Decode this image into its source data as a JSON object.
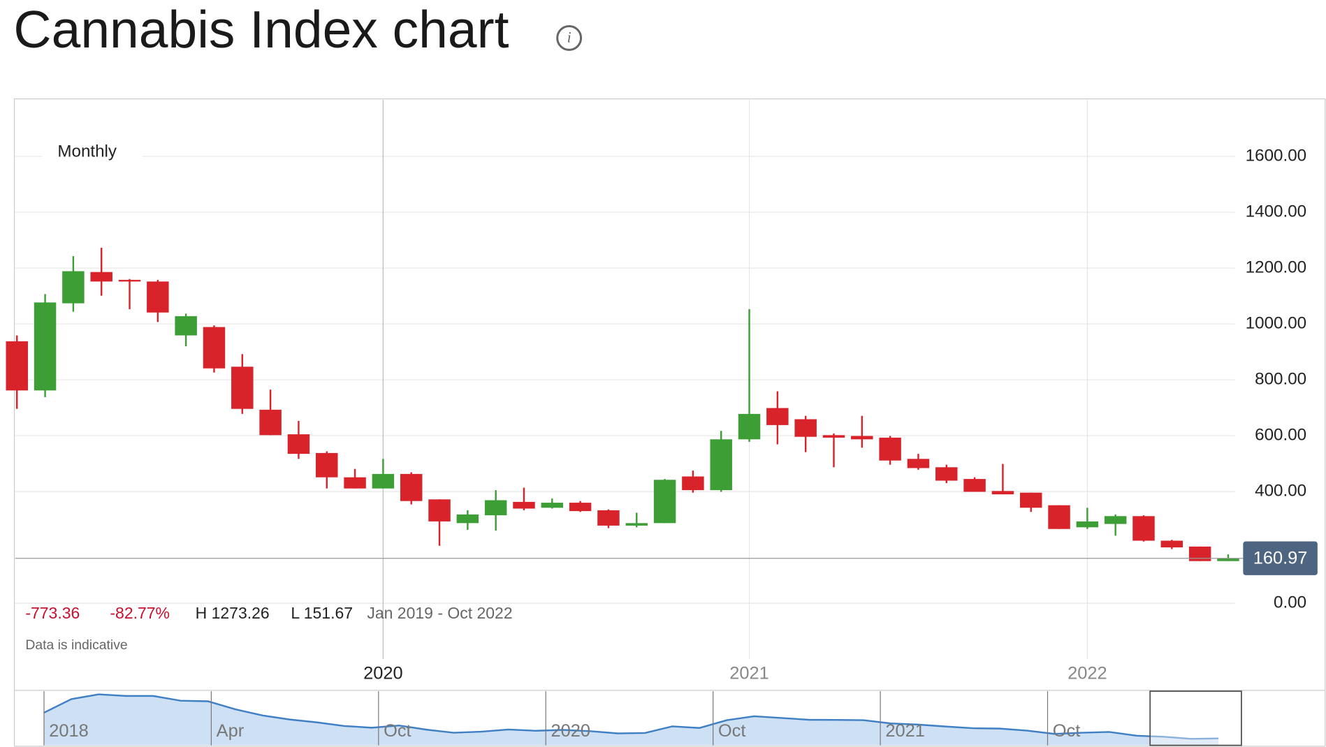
{
  "chart_data": {
    "type": "candlestick",
    "title": "Cannabis Index chart",
    "interval": "Monthly",
    "categories": [
      null,
      null,
      null,
      null,
      null,
      null,
      null,
      null,
      null,
      null,
      null,
      null,
      null,
      "2020",
      null,
      null,
      null,
      null,
      null,
      null,
      null,
      null,
      null,
      null,
      null,
      null,
      "2021",
      null,
      null,
      null,
      null,
      null,
      null,
      null,
      null,
      null,
      null,
      null,
      "2022",
      null,
      null,
      null,
      null,
      null
    ],
    "open": [
      938,
      762,
      1074,
      1186,
      1158,
      1152,
      959,
      989,
      847,
      693,
      605,
      538,
      451,
      411,
      463,
      372,
      287,
      315,
      363,
      342,
      360,
      333,
      278,
      287,
      454,
      405,
      587,
      699,
      659,
      602,
      599,
      593,
      517,
      487,
      445,
      402,
      396,
      351,
      272,
      284,
      312,
      224,
      203,
      151
    ],
    "high": [
      959,
      1107,
      1243,
      1273,
      1161,
      1158,
      1037,
      995,
      892,
      765,
      653,
      544,
      481,
      517,
      469,
      372,
      333,
      405,
      414,
      375,
      366,
      336,
      324,
      445,
      475,
      617,
      1053,
      759,
      671,
      608,
      671,
      599,
      535,
      496,
      451,
      499,
      396,
      351,
      342,
      318,
      315,
      227,
      203,
      175
    ],
    "low": [
      696,
      738,
      1044,
      1101,
      1053,
      1007,
      920,
      826,
      678,
      602,
      517,
      411,
      411,
      411,
      354,
      206,
      263,
      260,
      333,
      339,
      327,
      269,
      272,
      287,
      396,
      399,
      578,
      569,
      541,
      487,
      557,
      496,
      478,
      430,
      399,
      390,
      327,
      266,
      266,
      242,
      221,
      194,
      151,
      151
    ],
    "close": [
      762,
      1077,
      1189,
      1152,
      1152,
      1041,
      1028,
      841,
      696,
      602,
      535,
      451,
      411,
      463,
      366,
      293,
      318,
      369,
      339,
      360,
      330,
      278,
      287,
      442,
      405,
      587,
      678,
      638,
      596,
      593,
      587,
      511,
      484,
      439,
      399,
      390,
      342,
      266,
      293,
      312,
      224,
      200,
      151,
      161
    ],
    "up_color": "#3d9e35",
    "down_color": "#d8232a",
    "ylim": [
      -200,
      1803
    ],
    "yticks": [
      {
        "value": 0,
        "label": "0.00"
      },
      {
        "value": 400,
        "label": "400.00"
      },
      {
        "value": 600,
        "label": "600.00"
      },
      {
        "value": 800,
        "label": "800.00"
      },
      {
        "value": 1000,
        "label": "1000.00"
      },
      {
        "value": 1200,
        "label": "1200.00"
      },
      {
        "value": 1400,
        "label": "1400.00"
      },
      {
        "value": 1600,
        "label": "1600.00"
      }
    ],
    "grid": true,
    "last_price": 160.97,
    "stats": {
      "change": "-773.36",
      "change_pct": "-82.77%",
      "high": "H 1273.26",
      "low": "L 151.67",
      "range": "Jan 2019 - Oct 2022"
    },
    "note": "Data is indicative",
    "navigator": {
      "labels": [
        "2018",
        "Apr",
        "Oct",
        "2020",
        "Oct",
        "2021",
        "Oct"
      ],
      "line_color": "#3f7fc4",
      "fill_color": "#c9ddf2"
    }
  }
}
